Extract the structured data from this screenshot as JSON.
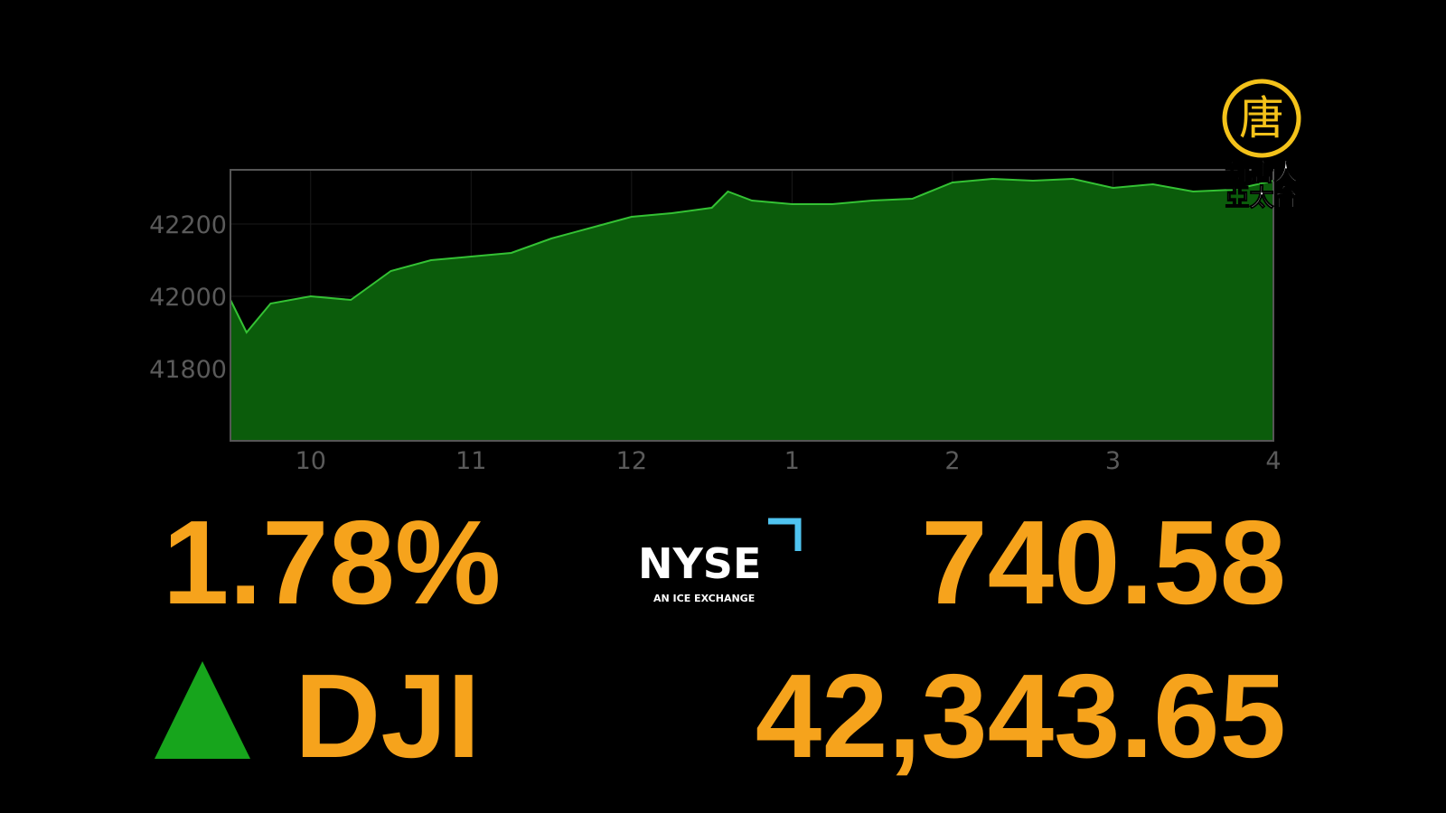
{
  "chart_data": {
    "type": "area",
    "x": [
      9.5,
      9.6,
      9.75,
      10,
      10.25,
      10.5,
      10.75,
      11,
      11.25,
      11.5,
      11.75,
      12,
      12.25,
      12.5,
      12.6,
      12.75,
      13,
      13.25,
      13.5,
      13.75,
      14,
      14.25,
      14.5,
      14.75,
      15,
      15.25,
      15.5,
      15.75,
      16
    ],
    "values": [
      41990,
      41900,
      41980,
      42000,
      41990,
      42070,
      42100,
      42110,
      42120,
      42160,
      42190,
      42220,
      42230,
      42245,
      42290,
      42265,
      42255,
      42255,
      42265,
      42270,
      42315,
      42325,
      42320,
      42325,
      42300,
      42310,
      42290,
      42295,
      42320
    ],
    "color": "#0b5c0b",
    "line_color": "#34c234",
    "xlim": [
      9.5,
      16
    ],
    "xticks": [
      10,
      11,
      12,
      {
        "value": 13,
        "label": "1"
      },
      {
        "value": 14,
        "label": "2"
      },
      {
        "value": 15,
        "label": "3"
      },
      {
        "value": 16,
        "label": "4"
      }
    ],
    "ylim": [
      41600,
      42350
    ],
    "yticks": [
      41800,
      42000,
      42200
    ],
    "grid": true
  },
  "ticker": {
    "change_percent": "1.78%",
    "symbol": "DJI",
    "change_points": "740.58",
    "index_value": "42,343.65"
  },
  "exchange_logo": {
    "name": "NYSE",
    "tagline": "AN ICE EXCHANGE"
  },
  "channel_logo": {
    "emblem": "唐",
    "line1": "新唐人",
    "line2": "亞太台"
  }
}
